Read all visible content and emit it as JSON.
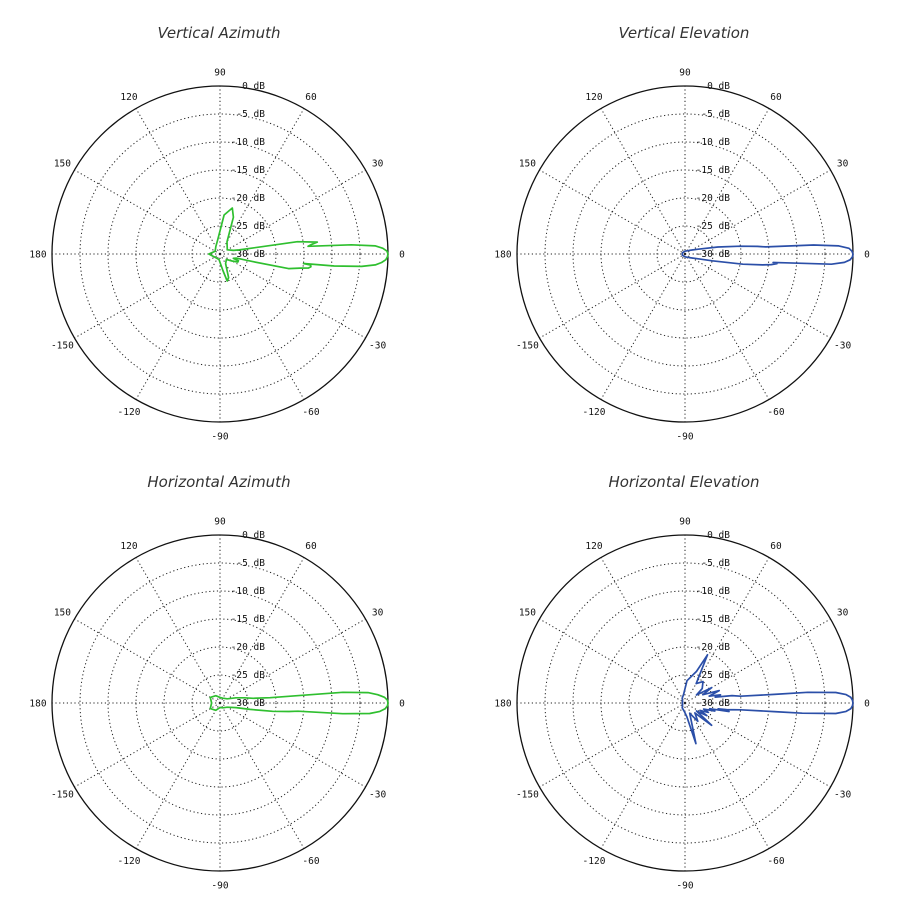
{
  "chart_data": [
    {
      "type": "polar",
      "title": "Vertical Azimuth",
      "color": "#2fbf2f",
      "r_range": [
        -30,
        0
      ],
      "r_unit": "dB",
      "ring_labels": [
        "0 dB",
        "-5 dB",
        "-10 dB",
        "-15 dB",
        "-20 dB",
        "-25 dB",
        "-30 dB"
      ],
      "angle_labels": [
        "0",
        "30",
        "60",
        "90",
        "120",
        "150",
        "180",
        "-150",
        "-120",
        "-90",
        "-60",
        "-30"
      ],
      "grid": true,
      "series": [
        {
          "points": [
            [
              0,
              0
            ],
            [
              -1,
              -0.1
            ],
            [
              -2,
              -0.4
            ],
            [
              -3,
              -1.1
            ],
            [
              -4,
              -2.2
            ],
            [
              -5,
              -4.6
            ],
            [
              -6,
              -9.5
            ],
            [
              -6.5,
              -15
            ],
            [
              -7,
              -13.7
            ],
            [
              -8,
              -13.6
            ],
            [
              -9,
              -14
            ],
            [
              -10,
              -15.5
            ],
            [
              -11,
              -16.5
            ],
            [
              -12,
              -17.5
            ],
            [
              -13,
              -24
            ],
            [
              -14,
              -27
            ],
            [
              -18,
              -27.5
            ],
            [
              -20,
              -26.5
            ],
            [
              -24,
              -26.5
            ],
            [
              -30,
              -27.5
            ],
            [
              -40,
              -28.5
            ],
            [
              -60,
              -28
            ],
            [
              -70,
              -25.5
            ],
            [
              -75,
              -25
            ],
            [
              -80,
              -27
            ],
            [
              -100,
              -29
            ],
            [
              -140,
              -29
            ],
            [
              180,
              -28
            ],
            [
              150,
              -29
            ],
            [
              120,
              -28.5
            ],
            [
              100,
              -27.5
            ],
            [
              84,
              -23
            ],
            [
              75,
              -21.5
            ],
            [
              70,
              -23
            ],
            [
              60,
              -27.5
            ],
            [
              30,
              -28.5
            ],
            [
              15,
              -27.5
            ],
            [
              12,
              -26.5
            ],
            [
              9,
              -16
            ],
            [
              7,
              -12.5
            ],
            [
              6,
              -13.5
            ],
            [
              5,
              -14.2
            ],
            [
              4,
              -6.5
            ],
            [
              3,
              -2.2
            ],
            [
              2,
              -0.9
            ],
            [
              1,
              -0.2
            ],
            [
              0,
              0
            ]
          ]
        }
      ]
    },
    {
      "type": "polar",
      "title": "Vertical Elevation",
      "color": "#2b4fa8",
      "r_range": [
        -30,
        0
      ],
      "r_unit": "dB",
      "ring_labels": [
        "0 dB",
        "-5 dB",
        "-10 dB",
        "-15 dB",
        "-20 dB",
        "-25 dB",
        "-30 dB"
      ],
      "angle_labels": [
        "0",
        "30",
        "60",
        "90",
        "120",
        "150",
        "180",
        "-150",
        "-120",
        "-90",
        "-60",
        "-30"
      ],
      "grid": true,
      "series": [
        {
          "points": [
            [
              0,
              0
            ],
            [
              -1,
              -0.1
            ],
            [
              -2,
              -0.5
            ],
            [
              -3,
              -1.5
            ],
            [
              -4,
              -3.8
            ],
            [
              -5,
              -12
            ],
            [
              -5.5,
              -14.2
            ],
            [
              -6,
              -13.5
            ],
            [
              -7,
              -14.5
            ],
            [
              -8,
              -16
            ],
            [
              -10,
              -19.5
            ],
            [
              -14,
              -25
            ],
            [
              -20,
              -27.5
            ],
            [
              -40,
              -29
            ],
            [
              -90,
              -29.5
            ],
            [
              -150,
              -29.5
            ],
            [
              180,
              -29.5
            ],
            [
              150,
              -29.5
            ],
            [
              90,
              -29.5
            ],
            [
              40,
              -29
            ],
            [
              20,
              -27.5
            ],
            [
              12,
              -24
            ],
            [
              8,
              -20
            ],
            [
              6,
              -17
            ],
            [
              5,
              -15.5
            ],
            [
              4,
              -7
            ],
            [
              3,
              -2.5
            ],
            [
              2,
              -0.7
            ],
            [
              1,
              -0.2
            ],
            [
              0,
              0
            ]
          ]
        }
      ]
    },
    {
      "type": "polar",
      "title": "Horizontal Azimuth",
      "color": "#2fbf2f",
      "r_range": [
        -30,
        0
      ],
      "r_unit": "dB",
      "ring_labels": [
        "0 dB",
        "-5 dB",
        "-10 dB",
        "-15 dB",
        "-20 dB",
        "-25 dB",
        "-30 dB"
      ],
      "angle_labels": [
        "0",
        "30",
        "60",
        "90",
        "120",
        "150",
        "180",
        "-150",
        "-120",
        "-90",
        "-60",
        "-30"
      ],
      "grid": true,
      "series": [
        {
          "points": [
            [
              0,
              0
            ],
            [
              -1,
              -0.1
            ],
            [
              -2,
              -0.5
            ],
            [
              -3,
              -1.4
            ],
            [
              -4,
              -3.2
            ],
            [
              -5,
              -8
            ],
            [
              -6,
              -16
            ],
            [
              -7,
              -17.6
            ],
            [
              -9,
              -20.5
            ],
            [
              -12,
              -24.5
            ],
            [
              -16,
              -27
            ],
            [
              -30,
              -28.5
            ],
            [
              -60,
              -29
            ],
            [
              -90,
              -29.2
            ],
            [
              -120,
              -28.5
            ],
            [
              -150,
              -28
            ],
            [
              180,
              -28.5
            ],
            [
              150,
              -28
            ],
            [
              120,
              -28.5
            ],
            [
              90,
              -29
            ],
            [
              60,
              -29
            ],
            [
              30,
              -28.5
            ],
            [
              18,
              -27
            ],
            [
              12,
              -25.5
            ],
            [
              8,
              -24
            ],
            [
              6,
              -21
            ],
            [
              5,
              -8
            ],
            [
              4,
              -3.5
            ],
            [
              3,
              -1.8
            ],
            [
              2,
              -0.6
            ],
            [
              1,
              -0.1
            ],
            [
              0,
              0
            ]
          ]
        }
      ]
    },
    {
      "type": "polar",
      "title": "Horizontal Elevation",
      "color": "#2b4fa8",
      "r_range": [
        -30,
        0
      ],
      "r_unit": "dB",
      "ring_labels": [
        "0 dB",
        "-5 dB",
        "-10 dB",
        "-15 dB",
        "-20 dB",
        "-25 dB",
        "-30 dB"
      ],
      "angle_labels": [
        "0",
        "30",
        "60",
        "90",
        "120",
        "150",
        "180",
        "-150",
        "-120",
        "-90",
        "-60",
        "-30"
      ],
      "grid": true,
      "series": [
        {
          "points": [
            [
              0,
              0
            ],
            [
              -1,
              -0.1
            ],
            [
              -2,
              -0.4
            ],
            [
              -3,
              -1.2
            ],
            [
              -4,
              -3
            ],
            [
              -5,
              -9
            ],
            [
              -5.5,
              -14
            ],
            [
              -7,
              -20
            ],
            [
              -9,
              -22.5
            ],
            [
              -10,
              -24
            ],
            [
              -11,
              -22
            ],
            [
              -13,
              -25.5
            ],
            [
              -15,
              -24.5
            ],
            [
              -18,
              -26.5
            ],
            [
              -22,
              -25.5
            ],
            [
              -26,
              -27
            ],
            [
              -30,
              -25.5
            ],
            [
              -35,
              -27.5
            ],
            [
              -40,
              -23.8
            ],
            [
              -45,
              -27.5
            ],
            [
              -55,
              -26
            ],
            [
              -65,
              -28
            ],
            [
              -75,
              -22.5
            ],
            [
              -82,
              -27.5
            ],
            [
              -95,
              -28.5
            ],
            [
              -120,
              -29
            ],
            [
              -150,
              -29.5
            ],
            [
              180,
              -29.5
            ],
            [
              150,
              -29.5
            ],
            [
              120,
              -29
            ],
            [
              100,
              -28.5
            ],
            [
              85,
              -26
            ],
            [
              70,
              -24
            ],
            [
              65,
              -20.5
            ],
            [
              60,
              -26
            ],
            [
              50,
              -25
            ],
            [
              40,
              -26
            ],
            [
              35,
              -27.5
            ],
            [
              30,
              -24.5
            ],
            [
              25,
              -26.5
            ],
            [
              20,
              -23.5
            ],
            [
              16,
              -25.5
            ],
            [
              13,
              -23.5
            ],
            [
              11,
              -24.5
            ],
            [
              9,
              -21.5
            ],
            [
              7,
              -20
            ],
            [
              5.5,
              -14
            ],
            [
              5,
              -8
            ],
            [
              4,
              -3
            ],
            [
              3,
              -1.2
            ],
            [
              2,
              -0.4
            ],
            [
              1,
              -0.1
            ],
            [
              0,
              0
            ]
          ]
        }
      ]
    }
  ]
}
